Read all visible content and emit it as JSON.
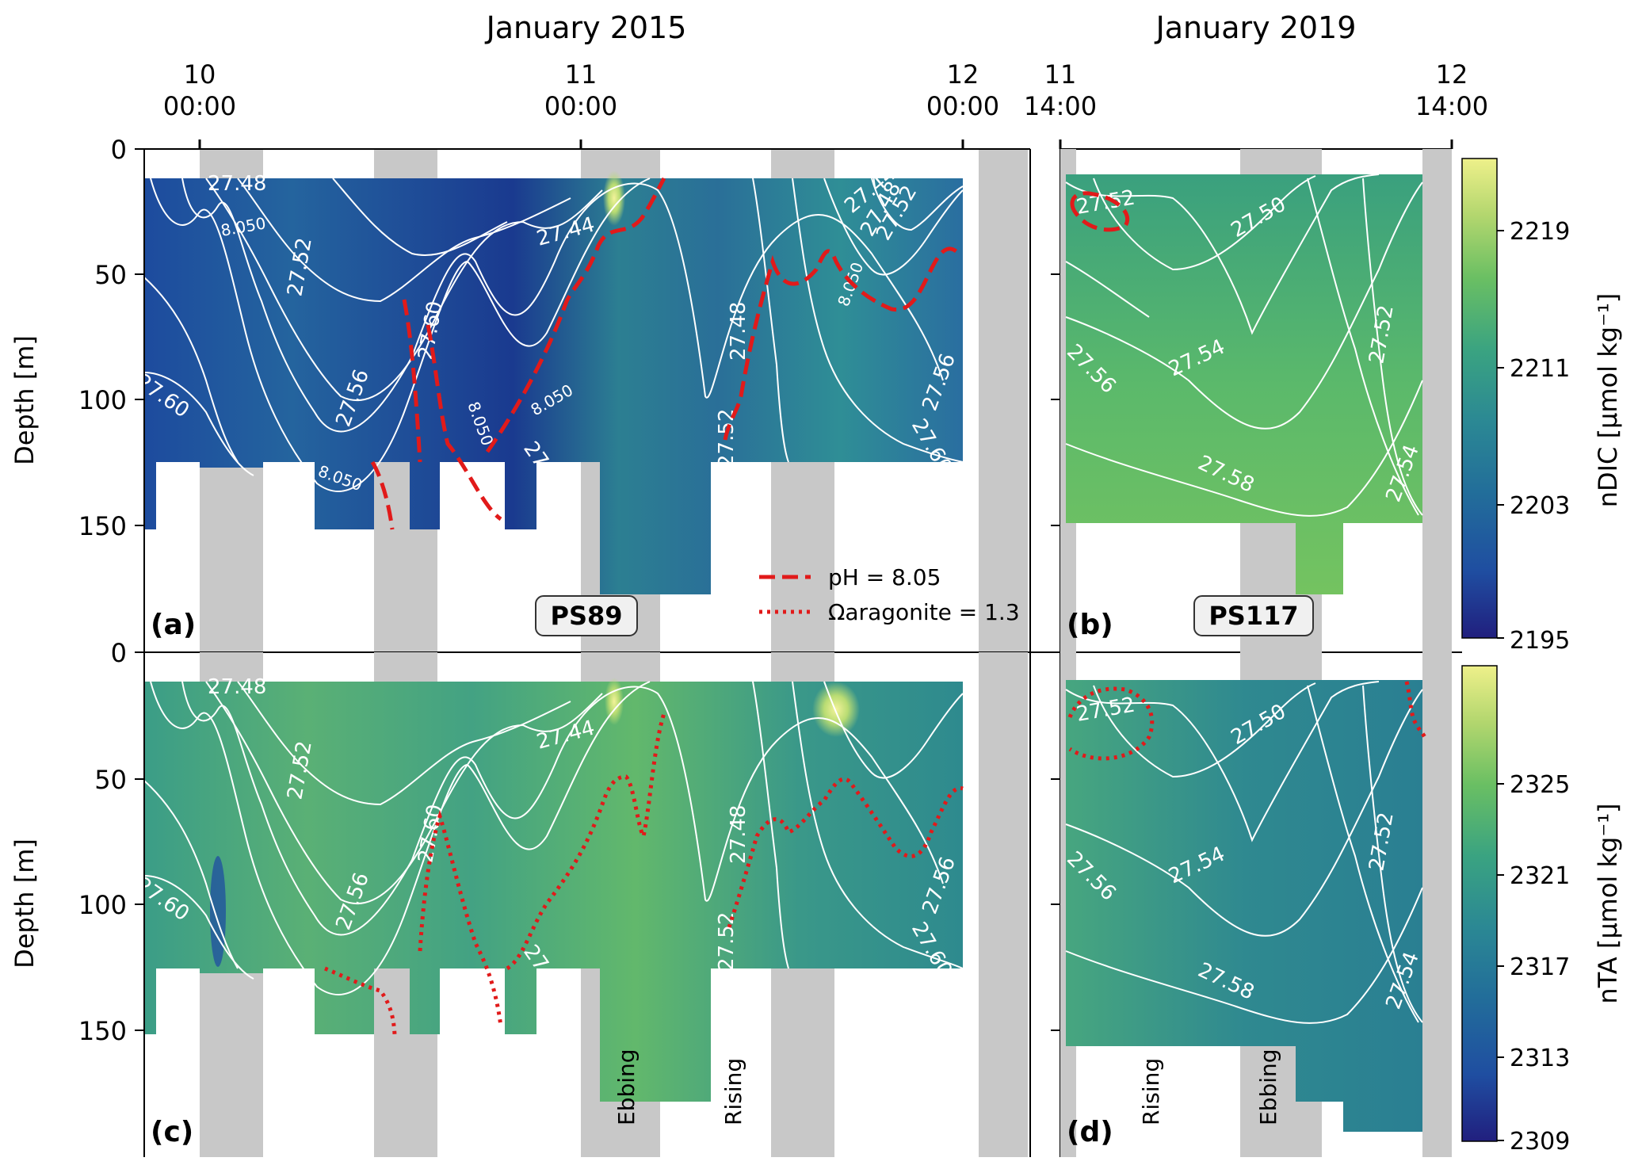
{
  "panel_labels": {
    "a": "(a)",
    "b": "(b)",
    "c": "(c)",
    "d": "(d)"
  },
  "station_labels": {
    "left": "PS89",
    "right": "PS117"
  },
  "legend": {
    "ph": "pH = 8.05",
    "omega": "Ωaragonite = 1.3"
  },
  "tide_labels": {
    "c_ebbing": "Ebbing",
    "c_rising": "Rising",
    "d_rising": "Rising",
    "d_ebbing": "Ebbing"
  },
  "colors": {
    "background": "#ffffff",
    "daylight_band": "#c8c8c8",
    "contour": "#ffffff",
    "ph_line": "#e11a1a",
    "omega_line": "#e11a1a",
    "colormap": [
      "#211f7e",
      "#1f4ea1",
      "#226d9a",
      "#2b8894",
      "#3aa381",
      "#6abf63",
      "#b2d66e",
      "#eef08a"
    ]
  },
  "chart_data": [
    {
      "id": "a",
      "type": "heatmap",
      "title": "January 2015",
      "variable": "nDIC",
      "ylabel": "Depth [m]",
      "ylim": [
        0,
        190
      ],
      "yticks": [
        0,
        50,
        100,
        150
      ],
      "x_ticks": [
        {
          "top": "10",
          "bottom": "00:00"
        },
        {
          "top": "11",
          "bottom": "00:00"
        },
        {
          "top": "12",
          "bottom": "00:00"
        }
      ],
      "contour_labels": [
        "27.48",
        "27.52",
        "27.60",
        "27.60",
        "27.56",
        "27.60",
        "27.44",
        "27.48",
        "27.52",
        "27.56",
        "27.60",
        "27.44",
        "27.48",
        "27.52"
      ],
      "ph_contour_labels": [
        "8.050",
        "8.050",
        "8.050",
        "8.050",
        "8.050"
      ],
      "ph_8_05_line": [
        {
          "x": 0.0,
          "y": 0
        },
        {
          "x": 0.3,
          "y": 60
        },
        {
          "x": 0.5,
          "y": 150
        },
        {
          "x": 1.03,
          "y": 60
        },
        {
          "x": 1.15,
          "y": 28
        },
        {
          "x": 1.5,
          "y": 60
        },
        {
          "x": 1.85,
          "y": 40
        },
        {
          "x": 2.0,
          "y": 48
        }
      ]
    },
    {
      "id": "b",
      "type": "heatmap",
      "title": "January 2019",
      "variable": "nDIC",
      "ylim": [
        0,
        190
      ],
      "x_ticks": [
        {
          "top": "11",
          "bottom": "14:00"
        },
        {
          "top": "12",
          "bottom": "14:00"
        }
      ],
      "contour_labels": [
        "27.52",
        "27.50",
        "27.56",
        "27.54",
        "27.52",
        "27.58",
        "27.54"
      ],
      "colorbar": {
        "label": "nDIC [µmol kg⁻¹]",
        "ticks": [
          2195,
          2203,
          2211,
          2219
        ],
        "range": [
          2195,
          2223
        ]
      }
    },
    {
      "id": "c",
      "type": "heatmap",
      "variable": "nTA",
      "ylabel": "Depth [m]",
      "ylim": [
        0,
        190
      ],
      "yticks": [
        0,
        50,
        100,
        150
      ],
      "contour_labels": [
        "27.48",
        "27.52",
        "27.60",
        "27.60",
        "27.56",
        "27.60",
        "27.44",
        "27.48",
        "27.52",
        "27.56",
        "27.60"
      ],
      "omega_1_3_line": [
        {
          "x": 0.0,
          "y": 0
        },
        {
          "x": 0.3,
          "y": 90
        },
        {
          "x": 0.5,
          "y": 148
        },
        {
          "x": 1.03,
          "y": 50
        },
        {
          "x": 1.2,
          "y": 25
        },
        {
          "x": 1.5,
          "y": 65
        },
        {
          "x": 1.85,
          "y": 85
        },
        {
          "x": 2.0,
          "y": 52
        }
      ]
    },
    {
      "id": "d",
      "type": "heatmap",
      "variable": "nTA",
      "ylim": [
        0,
        190
      ],
      "contour_labels": [
        "27.52",
        "27.50",
        "27.56",
        "27.54",
        "27.52",
        "27.58",
        "27.54"
      ],
      "colorbar": {
        "label": "nTA [µmol kg⁻¹]",
        "ticks": [
          2309,
          2313,
          2317,
          2321,
          2325
        ],
        "range": [
          2309,
          2330
        ]
      }
    }
  ]
}
